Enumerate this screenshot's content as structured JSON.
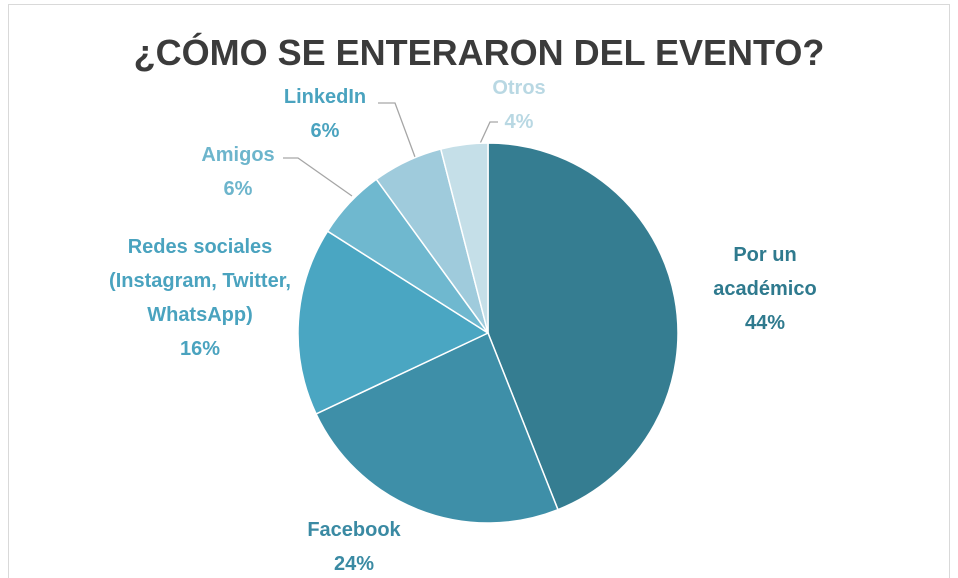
{
  "chart_data": {
    "type": "pie",
    "title": "¿CÓMO SE ENTERARON DEL EVENTO?",
    "categories": [
      "Por un académico",
      "Facebook",
      "Redes sociales (Instagram, Twitter, WhatsApp)",
      "Amigos",
      "LinkedIn",
      "Otros"
    ],
    "values": [
      44,
      24,
      16,
      6,
      6,
      4
    ],
    "value_labels": [
      "44%",
      "24%",
      "16%",
      "6%",
      "6%",
      "4%"
    ],
    "colors": [
      "#357d91",
      "#3e8fa8",
      "#4aa6c2",
      "#6fb8cf",
      "#9fcbdc",
      "#c5dfe8"
    ]
  }
}
